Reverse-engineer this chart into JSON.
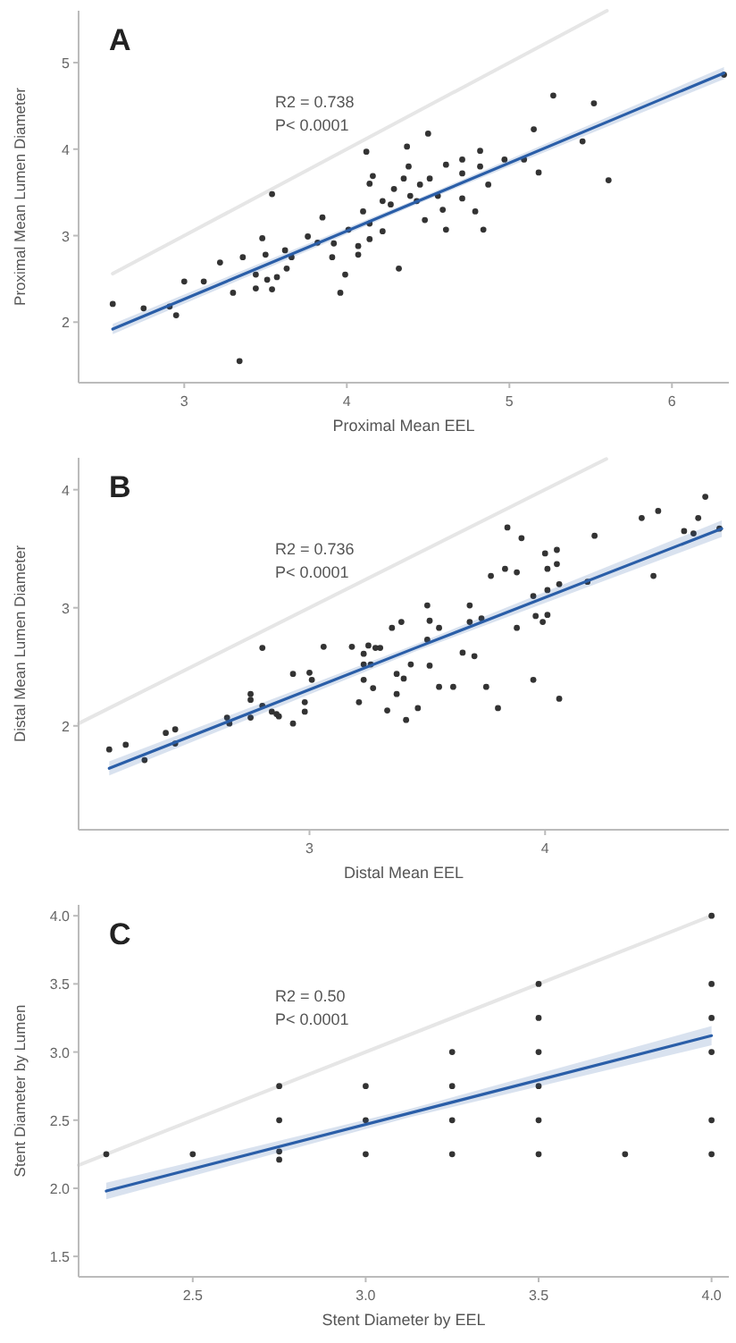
{
  "chart_data": [
    {
      "type": "scatter",
      "title": "A",
      "xlabel": "Proximal Mean EEL",
      "ylabel": "Proximal Mean Lumen Diameter",
      "xlim": [
        2.35,
        6.35
      ],
      "ylim": [
        1.3,
        5.6
      ],
      "xticks": [
        3,
        4,
        5,
        6
      ],
      "yticks": [
        2,
        3,
        4,
        5
      ],
      "grid": false,
      "marker": "circle",
      "annotations": [
        "R2 =  0.738",
        "P< 0.0001"
      ],
      "series": [
        {
          "type": "line",
          "marker": "none",
          "color": "#e6e6e6",
          "x": [
            2.56,
            5.6
          ],
          "values": [
            2.56,
            5.6
          ]
        },
        {
          "color": "#333333",
          "x": [
            2.56,
            2.75,
            2.91,
            2.95,
            3.0,
            3.12,
            3.22,
            3.3,
            3.34,
            3.36,
            3.44,
            3.44,
            3.48,
            3.5,
            3.51,
            3.54,
            3.54,
            3.57,
            3.62,
            3.63,
            3.66,
            3.76,
            3.82,
            3.85,
            3.91,
            3.92,
            3.96,
            3.99,
            4.01,
            4.07,
            4.07,
            4.1,
            4.12,
            4.14,
            4.16,
            4.14,
            4.14,
            4.22,
            4.22,
            4.27,
            4.29,
            4.32,
            4.35,
            4.37,
            4.38,
            4.39,
            4.43,
            4.45,
            4.48,
            4.5,
            4.51,
            4.56,
            4.59,
            4.61,
            4.61,
            4.71,
            4.71,
            4.71,
            4.79,
            4.82,
            4.82,
            4.84,
            4.87,
            4.97,
            5.09,
            5.15,
            5.18,
            5.27,
            5.45,
            5.52,
            5.61,
            6.32
          ],
          "values": [
            2.21,
            2.16,
            2.18,
            2.08,
            2.47,
            2.47,
            2.69,
            2.34,
            1.55,
            2.75,
            2.55,
            2.39,
            2.97,
            2.78,
            2.49,
            2.38,
            3.48,
            2.52,
            2.83,
            2.62,
            2.75,
            2.99,
            2.92,
            3.21,
            2.75,
            2.91,
            2.34,
            2.55,
            3.07,
            2.88,
            2.78,
            3.28,
            3.97,
            3.6,
            3.69,
            3.14,
            2.96,
            3.05,
            3.4,
            3.36,
            3.54,
            2.62,
            3.66,
            4.03,
            3.8,
            3.46,
            3.4,
            3.59,
            3.18,
            4.18,
            3.66,
            3.46,
            3.3,
            3.82,
            3.07,
            3.88,
            3.72,
            3.43,
            3.28,
            3.98,
            3.8,
            3.07,
            3.59,
            3.88,
            3.88,
            4.23,
            3.73,
            4.62,
            4.09,
            4.53,
            3.64,
            4.86
          ]
        },
        {
          "type": "line",
          "marker": "none",
          "color": "#2a5ea8",
          "x": [
            2.56,
            4.44,
            6.32
          ],
          "values": [
            1.92,
            3.4,
            4.88
          ],
          "lower": [
            1.86,
            3.37,
            4.81
          ],
          "upper": [
            1.98,
            3.43,
            4.95
          ]
        }
      ]
    },
    {
      "type": "scatter",
      "title": "B",
      "xlabel": "Distal Mean EEL",
      "ylabel": "Distal Mean Lumen Diameter",
      "xlim": [
        2.02,
        4.78
      ],
      "ylim": [
        1.12,
        4.27
      ],
      "xticks": [
        3,
        4
      ],
      "yticks": [
        2,
        3,
        4
      ],
      "grid": false,
      "marker": "circle",
      "annotations": [
        "R2 =  0.736",
        "P< 0.0001"
      ],
      "series": [
        {
          "type": "line",
          "marker": "none",
          "color": "#e6e6e6",
          "x": [
            2.02,
            4.26
          ],
          "values": [
            2.02,
            4.26
          ]
        },
        {
          "color": "#333333",
          "x": [
            2.15,
            2.22,
            2.3,
            2.39,
            2.43,
            2.43,
            2.65,
            2.66,
            2.75,
            2.75,
            2.75,
            2.8,
            2.8,
            2.84,
            2.86,
            2.87,
            2.93,
            2.93,
            2.98,
            2.98,
            3.0,
            3.01,
            3.06,
            3.18,
            3.21,
            3.23,
            3.23,
            3.23,
            3.25,
            3.26,
            3.28,
            3.27,
            3.3,
            3.33,
            3.35,
            3.37,
            3.37,
            3.39,
            3.4,
            3.41,
            3.43,
            3.46,
            3.5,
            3.5,
            3.51,
            3.51,
            3.55,
            3.55,
            3.61,
            3.65,
            3.68,
            3.68,
            3.7,
            3.73,
            3.75,
            3.77,
            3.8,
            3.83,
            3.84,
            3.88,
            3.88,
            3.9,
            3.95,
            3.95,
            3.96,
            3.99,
            4.0,
            4.01,
            4.01,
            4.01,
            4.05,
            4.05,
            4.06,
            4.06,
            4.18,
            4.21,
            4.41,
            4.46,
            4.48,
            4.59,
            4.63,
            4.65,
            4.68,
            4.74
          ],
          "values": [
            1.8,
            1.84,
            1.71,
            1.94,
            1.97,
            1.85,
            2.07,
            2.02,
            2.07,
            2.27,
            2.22,
            2.66,
            2.17,
            2.12,
            2.1,
            2.08,
            2.02,
            2.44,
            2.2,
            2.12,
            2.45,
            2.39,
            2.67,
            2.67,
            2.2,
            2.39,
            2.61,
            2.52,
            2.68,
            2.52,
            2.66,
            2.32,
            2.66,
            2.13,
            2.83,
            2.44,
            2.27,
            2.88,
            2.4,
            2.05,
            2.52,
            2.15,
            2.73,
            3.02,
            2.89,
            2.51,
            2.33,
            2.83,
            2.33,
            2.62,
            3.02,
            2.88,
            2.59,
            2.91,
            2.33,
            3.27,
            2.15,
            3.33,
            3.68,
            3.3,
            2.83,
            3.59,
            3.1,
            2.39,
            2.93,
            2.88,
            3.46,
            3.15,
            3.33,
            2.94,
            3.49,
            3.37,
            3.2,
            2.23,
            3.22,
            3.61,
            3.76,
            3.27,
            3.82,
            3.65,
            3.63,
            3.76,
            3.94,
            3.67
          ]
        },
        {
          "type": "line",
          "marker": "none",
          "color": "#2a5ea8",
          "x": [
            2.15,
            3.45,
            4.75
          ],
          "values": [
            1.64,
            2.66,
            3.67
          ],
          "lower": [
            1.58,
            2.63,
            3.6
          ],
          "upper": [
            1.7,
            2.69,
            3.74
          ]
        }
      ]
    },
    {
      "type": "scatter",
      "title": "C",
      "xlabel": "Stent Diameter by EEL",
      "ylabel": "Stent  Diameter by Lumen",
      "xlim": [
        2.17,
        4.05
      ],
      "ylim": [
        1.35,
        4.08
      ],
      "xticks": [
        2.5,
        {
          "value": 3,
          "label": "3.0"
        },
        3.5,
        {
          "value": 4,
          "label": "4.0"
        }
      ],
      "yticks": [
        1.5,
        {
          "value": 2,
          "label": "2.0"
        },
        2.5,
        {
          "value": 3,
          "label": "3.0"
        },
        3.5,
        {
          "value": 4,
          "label": "4.0"
        }
      ],
      "grid": false,
      "marker": "circle",
      "annotations": [
        "R2 =  0.50",
        "P< 0.0001"
      ],
      "series": [
        {
          "type": "line",
          "marker": "none",
          "color": "#e6e6e6",
          "x": [
            2.17,
            4.0
          ],
          "values": [
            2.17,
            4.0
          ]
        },
        {
          "color": "#333333",
          "x": [
            2.25,
            2.5,
            2.75,
            2.75,
            2.75,
            2.75,
            3.0,
            3.0,
            3.0,
            3.25,
            3.25,
            3.25,
            3.25,
            3.5,
            3.5,
            3.5,
            3.5,
            3.5,
            3.5,
            3.75,
            4.0,
            4.0,
            4.0,
            4.0,
            4.0,
            4.0
          ],
          "values": [
            2.25,
            2.25,
            2.75,
            2.5,
            2.27,
            2.21,
            2.75,
            2.5,
            2.25,
            3.0,
            2.75,
            2.5,
            2.25,
            3.5,
            3.25,
            3.0,
            2.75,
            2.5,
            2.25,
            2.25,
            4.0,
            3.5,
            3.25,
            3.0,
            2.5,
            2.25
          ]
        },
        {
          "type": "line",
          "marker": "none",
          "color": "#2a5ea8",
          "x": [
            2.25,
            3.125,
            4.0
          ],
          "values": [
            1.98,
            2.55,
            3.12
          ],
          "lower": [
            1.92,
            2.52,
            3.05
          ],
          "upper": [
            2.04,
            2.58,
            3.19
          ]
        }
      ]
    }
  ]
}
